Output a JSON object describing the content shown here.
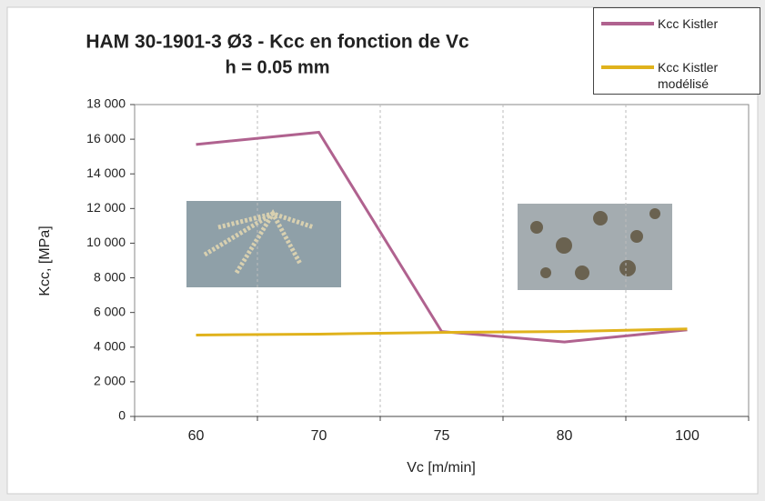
{
  "chart_data": {
    "type": "line",
    "title": "HAM 30-1901-3 Ø3 - Kcc en fonction de Vc",
    "subtitle": "h = 0.05 mm",
    "x_label": "Vc [m/min]",
    "y_label": "Kcc, [MPa]",
    "categories": [
      "60",
      "70",
      "75",
      "80",
      "100"
    ],
    "series": [
      {
        "name": "Kcc Kistler",
        "color": "#b0628f",
        "values": [
          15700,
          16400,
          4900,
          4300,
          5000
        ]
      },
      {
        "name": "Kcc Kistler modélisé",
        "color": "#e0b21c",
        "values": [
          4700,
          4750,
          4850,
          4900,
          5050
        ]
      }
    ],
    "ylim": [
      0,
      18000
    ],
    "yticks": [
      0,
      {
        "value": 2000,
        "label": "2 000"
      },
      {
        "value": 4000,
        "label": "4 000"
      },
      {
        "value": 6000,
        "label": "6 000"
      },
      {
        "value": 8000,
        "label": "8 000"
      },
      {
        "value": 10000,
        "label": "10 000"
      },
      {
        "value": 12000,
        "label": "12 000"
      },
      {
        "value": 14000,
        "label": "14 000"
      },
      {
        "value": 16000,
        "label": "16 000"
      },
      {
        "value": 18000,
        "label": "18 000"
      }
    ],
    "legend": "top-right"
  }
}
